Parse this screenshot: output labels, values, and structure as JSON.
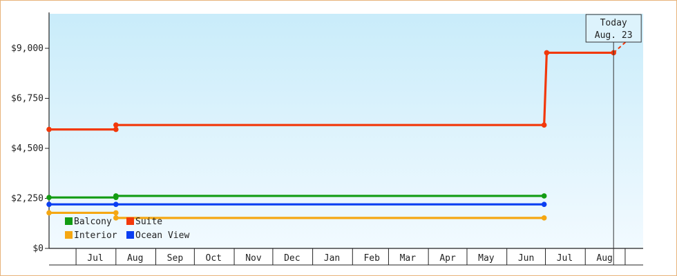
{
  "chart_data": {
    "type": "line",
    "title": "",
    "xlabel": "",
    "ylabel": "",
    "ylim": [
      0,
      10000
    ],
    "y_ticks": [
      0,
      2250,
      4500,
      6750,
      9000
    ],
    "y_tick_labels": [
      "$0",
      "$2,250",
      "$4,500",
      "$6,750",
      "$9,000"
    ],
    "x_tick_labels": [
      "Jul",
      "Aug",
      "Sep",
      "Oct",
      "Nov",
      "Dec",
      "Jan",
      "Feb",
      "Mar",
      "Apr",
      "May",
      "Jun",
      "Jul",
      "Aug"
    ],
    "x_range": [
      "2022-06-10",
      "2023-09-15"
    ],
    "grid": false,
    "legend_position": "bottom-left",
    "series": [
      {
        "name": "Balcony",
        "color": "#129c12",
        "points": [
          {
            "x": "2022-06-10",
            "y": 2290
          },
          {
            "x": "2022-08-01",
            "y": 2290
          },
          {
            "x": "2022-08-01",
            "y": 2360
          },
          {
            "x": "2023-06-30",
            "y": 2360
          }
        ]
      },
      {
        "name": "Suite",
        "color": "#f2380a",
        "points": [
          {
            "x": "2022-06-10",
            "y": 5350
          },
          {
            "x": "2022-08-01",
            "y": 5350
          },
          {
            "x": "2022-08-01",
            "y": 5550
          },
          {
            "x": "2023-06-30",
            "y": 5550
          },
          {
            "x": "2023-07-02",
            "y": 8800
          },
          {
            "x": "2023-08-23",
            "y": 8800
          }
        ]
      },
      {
        "name": "Interior",
        "color": "#f5a712",
        "points": [
          {
            "x": "2022-06-10",
            "y": 1600
          },
          {
            "x": "2022-08-01",
            "y": 1600
          },
          {
            "x": "2022-08-01",
            "y": 1370
          },
          {
            "x": "2023-06-30",
            "y": 1370
          }
        ]
      },
      {
        "name": "Ocean View",
        "color": "#0a3ef2",
        "points": [
          {
            "x": "2022-06-10",
            "y": 1980
          },
          {
            "x": "2022-08-01",
            "y": 1980
          },
          {
            "x": "2023-06-30",
            "y": 1980
          }
        ]
      }
    ],
    "today": {
      "line1": "Today",
      "line2": "Aug. 23",
      "date": "2023-08-23"
    }
  }
}
